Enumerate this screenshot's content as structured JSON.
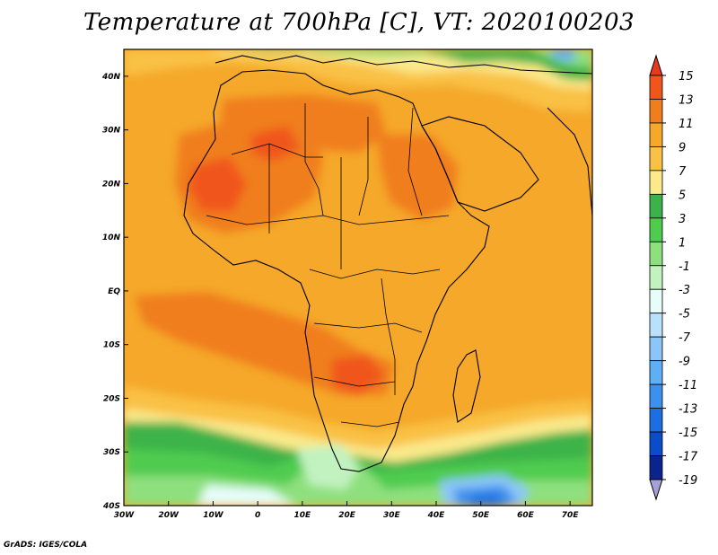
{
  "title": "Temperature at 700hPa [C], VT: 2020100203",
  "credit": "GrADS: IGES/COLA",
  "map": {
    "lon_range": [
      -30,
      75
    ],
    "lat_range": [
      -40,
      45
    ],
    "x_ticks": [
      "30W",
      "20W",
      "10W",
      "0",
      "10E",
      "20E",
      "30E",
      "40E",
      "50E",
      "60E",
      "70E"
    ],
    "y_ticks": [
      "40S",
      "30S",
      "20S",
      "10S",
      "EQ",
      "10N",
      "20N",
      "30N",
      "40N"
    ],
    "field": "temperature",
    "units": "C",
    "contour_interval": 2
  },
  "colorbar": {
    "labels": [
      "15",
      "13",
      "11",
      "9",
      "7",
      "5",
      "3",
      "1",
      "-1",
      "-3",
      "-5",
      "-7",
      "-9",
      "-11",
      "-13",
      "-15",
      "-17",
      "-19"
    ],
    "colors": [
      "#e8381f",
      "#f0561c",
      "#f07e1f",
      "#f5a82a",
      "#f9c145",
      "#fbe98b",
      "#3cb34a",
      "#4fcc4f",
      "#8ee07e",
      "#c2f2c0",
      "#e6fdf9",
      "#b9e1fb",
      "#8cc6f8",
      "#60aef3",
      "#3d91ee",
      "#1c6ee3",
      "#0d4cc8",
      "#0b238c",
      "#a6a0d9"
    ]
  }
}
